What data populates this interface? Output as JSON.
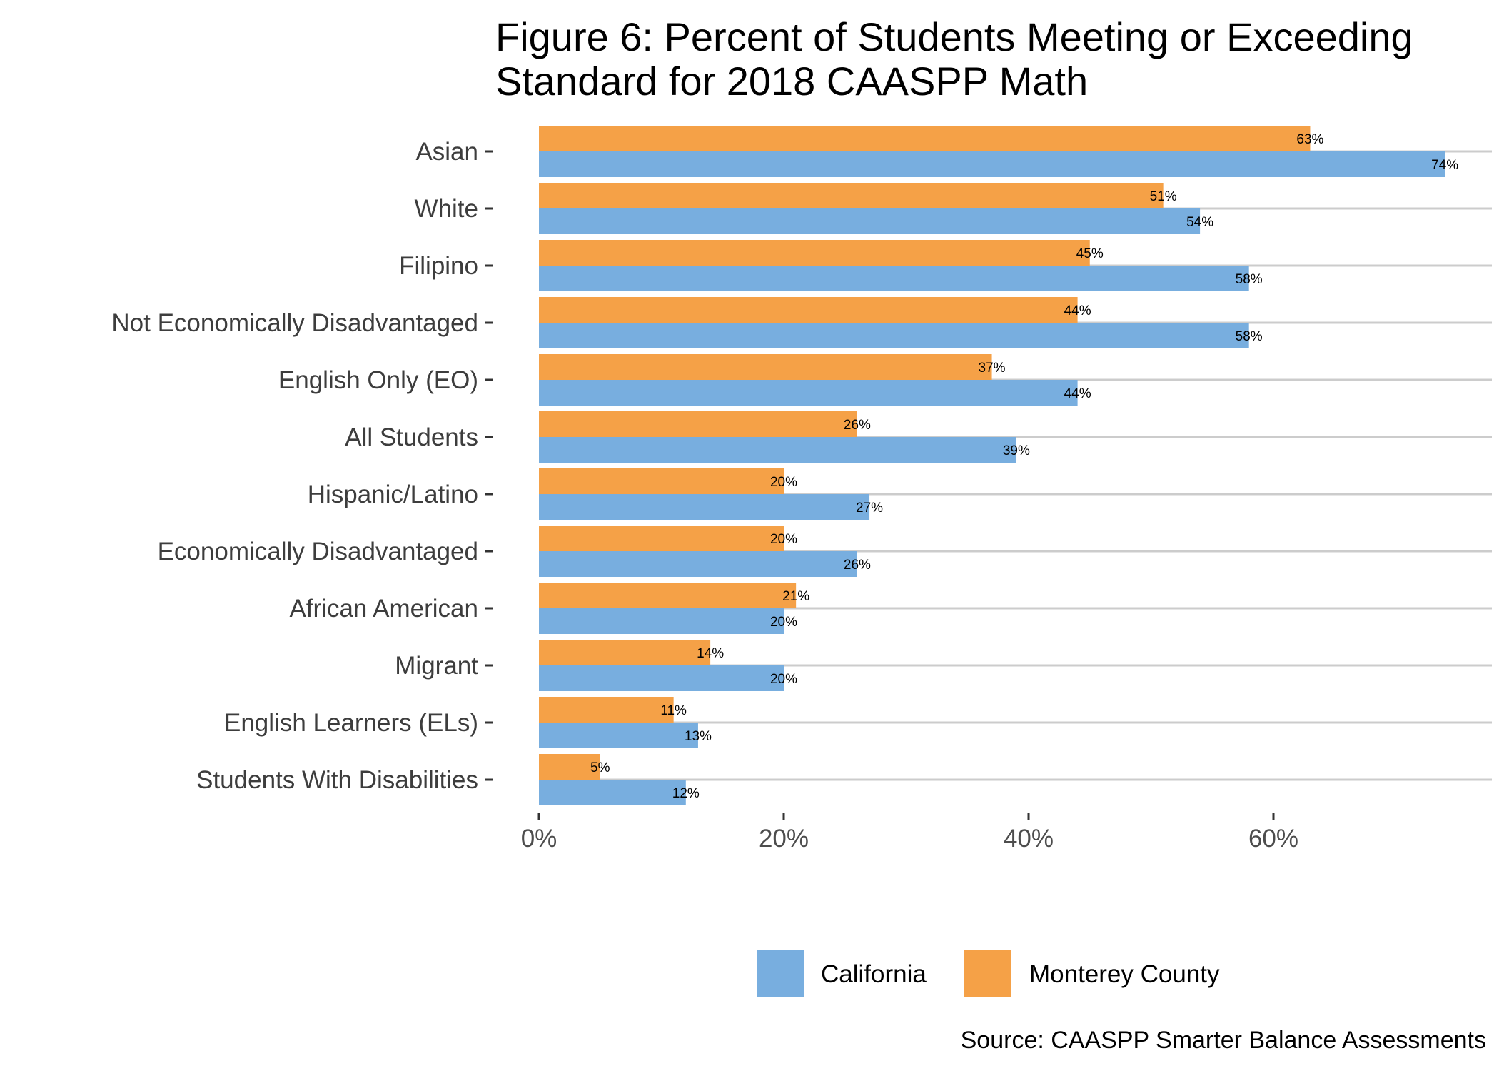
{
  "chart_data": {
    "type": "bar",
    "orientation": "horizontal",
    "title": "Figure 6: Percent of Students Meeting or Exceeding Standard for 2018 CAASPP Math",
    "title_lines": [
      "Figure 6: Percent of Students Meeting or Exceeding",
      "Standard for 2018 CAASPP Math"
    ],
    "categories": [
      "Asian",
      "White",
      "Filipino",
      "Not Economically Disadvantaged",
      "English Only (EO)",
      "All Students",
      "Hispanic/Latino",
      "Economically Disadvantaged",
      "African American",
      "Migrant",
      "English Learners (ELs)",
      "Students With Disabilities"
    ],
    "series": [
      {
        "name": "Monterey County",
        "color": "#F5A147",
        "values": [
          63,
          51,
          45,
          44,
          37,
          26,
          20,
          20,
          21,
          14,
          11,
          5
        ]
      },
      {
        "name": "California",
        "color": "#78AEDF",
        "values": [
          74,
          54,
          58,
          58,
          44,
          39,
          27,
          26,
          20,
          20,
          13,
          12
        ]
      }
    ],
    "xlim": [
      0,
      78
    ],
    "x_ticks": [
      0,
      20,
      40,
      60
    ],
    "x_tick_labels": [
      "0%",
      "20%",
      "40%",
      "60%"
    ],
    "value_suffix": "%",
    "legend": {
      "position": "bottom",
      "items": [
        {
          "label": "California",
          "color": "#78AEDF"
        },
        {
          "label": "Monterey County",
          "color": "#F5A147"
        }
      ]
    },
    "caption": "Source: CAASPP Smarter Balance Assessments",
    "grid": "horizontal major lines"
  }
}
